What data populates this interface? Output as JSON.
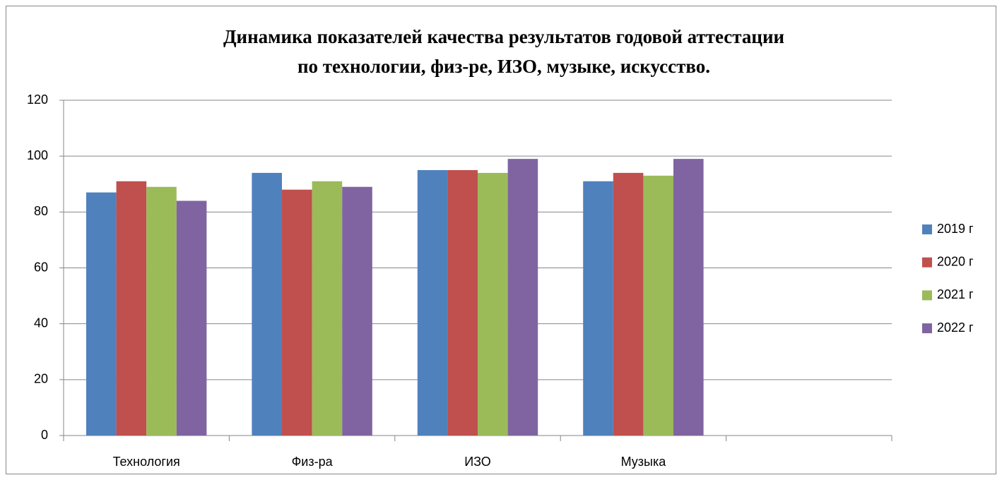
{
  "chart_data": {
    "type": "bar",
    "title": [
      "Динамика показателей качества результатов годовой аттестации",
      "по технологии, физ-ре, ИЗО, музыке, искусство."
    ],
    "categories": [
      "Технология",
      "Физ-ра",
      "ИЗО",
      "Музыка",
      null
    ],
    "series": [
      {
        "name": "2019 г",
        "color": "#4f81bd",
        "values": [
          87,
          94,
          95,
          91,
          null
        ]
      },
      {
        "name": "2020 г",
        "color": "#c0504d",
        "values": [
          91,
          88,
          95,
          94,
          null
        ]
      },
      {
        "name": "2021 г",
        "color": "#9bbb59",
        "values": [
          89,
          91,
          94,
          93,
          null
        ]
      },
      {
        "name": "2022 г",
        "color": "#8064a2",
        "values": [
          84,
          89,
          99,
          99,
          null
        ]
      }
    ],
    "ylim": [
      0,
      120
    ],
    "yticks": [
      0,
      20,
      40,
      60,
      80,
      100,
      120
    ],
    "grid": true,
    "legend": "right"
  }
}
